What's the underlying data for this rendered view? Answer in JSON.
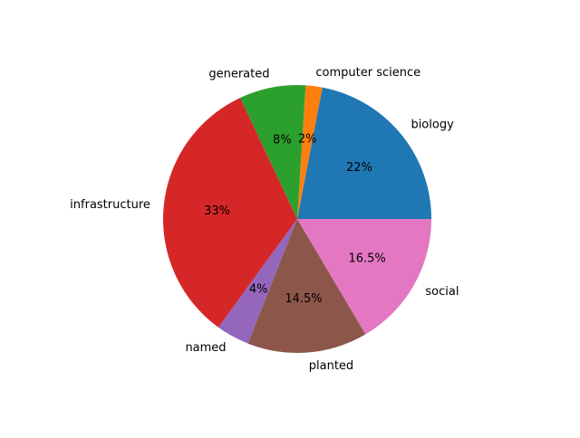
{
  "chart_data": {
    "type": "pie",
    "title": "",
    "start_angle_deg": 0,
    "direction": "counterclockwise",
    "slices": [
      {
        "label": "biology",
        "value": 22,
        "pct_label": "22%",
        "color": "#1f77b4"
      },
      {
        "label": "computer science",
        "value": 2,
        "pct_label": "2%",
        "color": "#ff7f0e"
      },
      {
        "label": "generated",
        "value": 8,
        "pct_label": "8%",
        "color": "#2ca02c"
      },
      {
        "label": "infrastructure",
        "value": 33,
        "pct_label": "33%",
        "color": "#d62728"
      },
      {
        "label": "named",
        "value": 4,
        "pct_label": "4%",
        "color": "#9467bd"
      },
      {
        "label": "planted",
        "value": 14.5,
        "pct_label": "14.5%",
        "color": "#8c564b"
      },
      {
        "label": "social",
        "value": 16.5,
        "pct_label": "16.5%",
        "color": "#e377c2"
      }
    ]
  }
}
